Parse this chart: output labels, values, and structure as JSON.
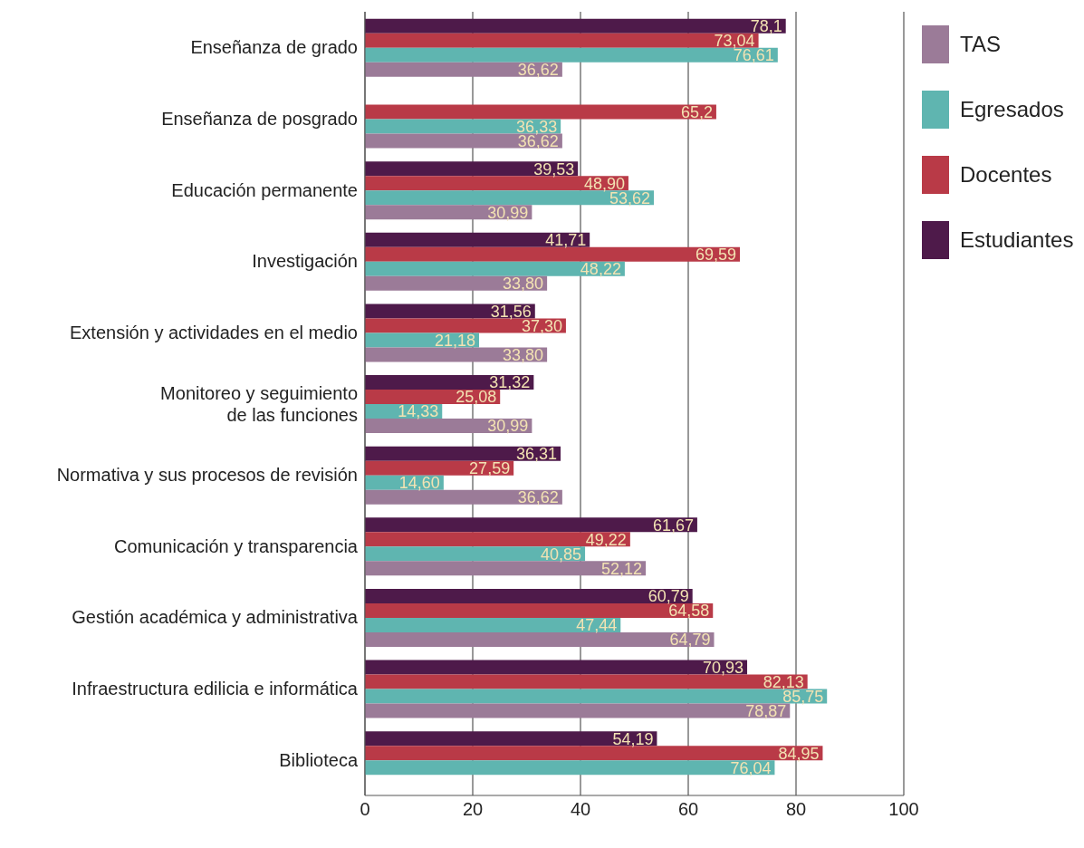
{
  "chart_data": {
    "type": "bar",
    "orientation": "horizontal",
    "categories": [
      "Enseñanza de grado",
      "Enseñanza de posgrado",
      "Educación permanente",
      "Investigación",
      "Extensión y actividades en el medio",
      "Monitoreo y seguimiento de las funciones",
      "Normativa y sus procesos de revisión",
      "Comunicación y transparencia",
      "Gestión académica y administrativa",
      "Infraestructura edilicia e informática",
      "Biblioteca"
    ],
    "series": [
      {
        "name": "Estudiantes",
        "color": "#4e1a4a",
        "values": [
          78.1,
          null,
          39.53,
          41.71,
          31.56,
          31.32,
          36.31,
          61.67,
          60.79,
          70.93,
          54.19
        ],
        "value_labels": [
          "78,1",
          null,
          "39,53",
          "41,71",
          "31,56",
          "31,32",
          "36,31",
          "61,67",
          "60,79",
          "70,93",
          "54,19"
        ]
      },
      {
        "name": "Docentes",
        "color": "#b93a47",
        "values": [
          73.04,
          65.2,
          48.9,
          69.59,
          37.3,
          25.08,
          27.59,
          49.22,
          64.58,
          82.13,
          84.95
        ],
        "value_labels": [
          "73,04",
          "65,2",
          "48,90",
          "69,59",
          "37,30",
          "25,08",
          "27,59",
          "49,22",
          "64,58",
          "82,13",
          "84,95"
        ]
      },
      {
        "name": "Egresados",
        "color": "#5fb5b0",
        "values": [
          76.61,
          36.33,
          53.62,
          48.22,
          21.18,
          14.33,
          14.6,
          40.85,
          47.44,
          85.75,
          76.04
        ],
        "value_labels": [
          "76,61",
          "36,33",
          "53,62",
          "48,22",
          "21,18",
          "14,33",
          "14,60",
          "40,85",
          "47,44",
          "85,75",
          "76,04"
        ]
      },
      {
        "name": "TAS",
        "color": "#9b7b98",
        "values": [
          36.62,
          36.62,
          30.99,
          33.8,
          33.8,
          30.99,
          36.62,
          52.12,
          64.79,
          78.87,
          null
        ],
        "value_labels": [
          "36,62",
          "36,62",
          "30,99",
          "33,80",
          "33,80",
          "30,99",
          "36,62",
          "52,12",
          "64,79",
          "78,87",
          null
        ]
      }
    ],
    "xlim": [
      0,
      100
    ],
    "xticks": [
      0,
      20,
      40,
      60,
      80,
      100
    ],
    "grid": "x",
    "legend": "top right"
  }
}
